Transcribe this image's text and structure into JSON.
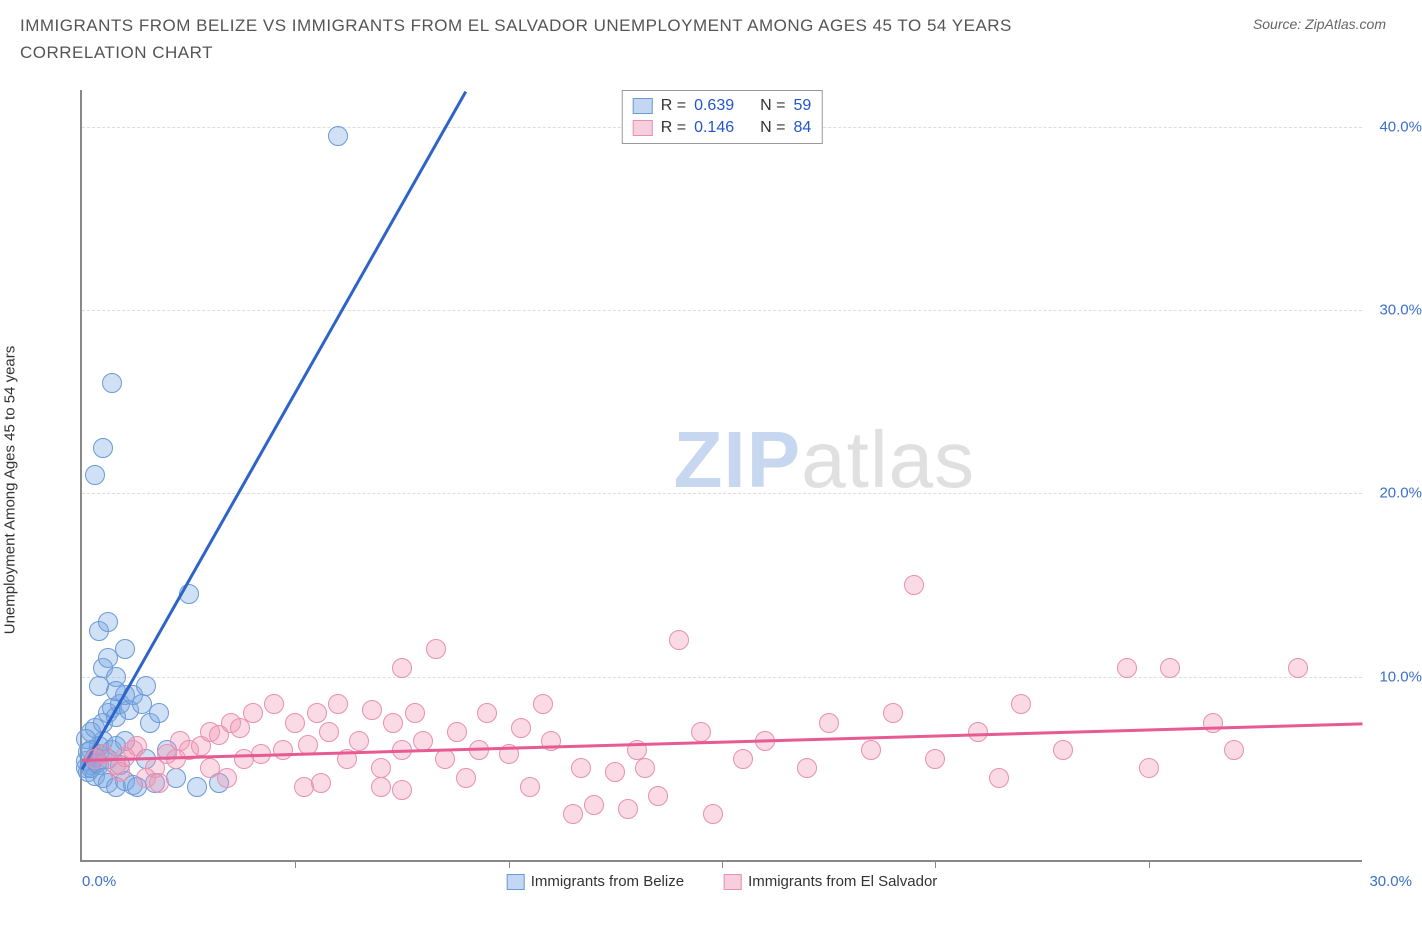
{
  "title": "IMMIGRANTS FROM BELIZE VS IMMIGRANTS FROM EL SALVADOR UNEMPLOYMENT AMONG AGES 45 TO 54 YEARS CORRELATION CHART",
  "source": "Source: ZipAtlas.com",
  "ylabel": "Unemployment Among Ages 45 to 54 years",
  "watermark_zip": "ZIP",
  "watermark_atlas": "atlas",
  "chart": {
    "type": "scatter",
    "background_color": "#ffffff",
    "grid_color": "#dddddd",
    "axis_color": "#888888",
    "tick_label_color": "#3b6fc9",
    "xlim": [
      0,
      30
    ],
    "ylim": [
      0,
      42
    ],
    "x_ticks": [
      0,
      5,
      10,
      15,
      20,
      25,
      30
    ],
    "x_tick_labels_shown": {
      "0": "0.0%",
      "30": "30.0%"
    },
    "y_ticks": [
      10,
      20,
      30,
      40
    ],
    "y_tick_labels": {
      "10": "10.0%",
      "20": "20.0%",
      "30": "30.0%",
      "40": "40.0%"
    },
    "point_radius": 9,
    "point_stroke_width": 1.5,
    "series": [
      {
        "name": "Immigrants from Belize",
        "fill_color": "rgba(120,165,225,0.35)",
        "stroke_color": "#6a9ad8",
        "legend_fill": "#c3d7f2",
        "legend_stroke": "#6a9ad8",
        "R": "0.639",
        "N": "59",
        "trend": {
          "x1": 0,
          "y1": 5.0,
          "x2": 9.0,
          "y2": 42.0,
          "color": "#2e63c8",
          "width": 3
        },
        "points": [
          [
            0.1,
            5.0
          ],
          [
            0.2,
            5.2
          ],
          [
            0.1,
            5.4
          ],
          [
            0.3,
            5.6
          ],
          [
            0.2,
            6.0
          ],
          [
            0.4,
            5.8
          ],
          [
            0.15,
            4.8
          ],
          [
            0.3,
            4.6
          ],
          [
            0.4,
            6.2
          ],
          [
            0.5,
            6.5
          ],
          [
            0.2,
            7.0
          ],
          [
            0.3,
            7.2
          ],
          [
            0.1,
            6.6
          ],
          [
            0.4,
            5.2
          ],
          [
            0.6,
            5.5
          ],
          [
            0.7,
            6.0
          ],
          [
            0.8,
            6.2
          ],
          [
            0.2,
            5.0
          ],
          [
            0.35,
            5.3
          ],
          [
            0.15,
            5.9
          ],
          [
            0.5,
            7.5
          ],
          [
            0.6,
            8.0
          ],
          [
            0.7,
            8.3
          ],
          [
            0.8,
            7.8
          ],
          [
            0.9,
            8.5
          ],
          [
            1.0,
            9.0
          ],
          [
            1.1,
            8.2
          ],
          [
            0.5,
            4.5
          ],
          [
            0.6,
            4.2
          ],
          [
            0.8,
            4.0
          ],
          [
            1.0,
            4.3
          ],
          [
            1.2,
            4.1
          ],
          [
            0.9,
            5.2
          ],
          [
            0.4,
            9.5
          ],
          [
            0.5,
            10.5
          ],
          [
            0.6,
            11.0
          ],
          [
            0.8,
            10.0
          ],
          [
            1.0,
            11.5
          ],
          [
            1.2,
            9.0
          ],
          [
            1.4,
            8.5
          ],
          [
            1.6,
            7.5
          ],
          [
            1.8,
            8.0
          ],
          [
            2.0,
            6.0
          ],
          [
            1.5,
            5.5
          ],
          [
            0.4,
            12.5
          ],
          [
            0.6,
            13.0
          ],
          [
            0.3,
            21.0
          ],
          [
            0.5,
            22.5
          ],
          [
            0.7,
            26.0
          ],
          [
            2.5,
            14.5
          ],
          [
            1.3,
            4.0
          ],
          [
            1.7,
            4.2
          ],
          [
            2.2,
            4.5
          ],
          [
            2.7,
            4.0
          ],
          [
            3.2,
            4.2
          ],
          [
            1.5,
            9.5
          ],
          [
            1.0,
            6.5
          ],
          [
            0.8,
            9.2
          ],
          [
            6.0,
            39.5
          ]
        ]
      },
      {
        "name": "Immigrants from El Salvador",
        "fill_color": "rgba(240,150,180,0.35)",
        "stroke_color": "#e990b0",
        "legend_fill": "#f7cedd",
        "legend_stroke": "#e990b0",
        "R": "0.146",
        "N": "84",
        "trend": {
          "x1": 0,
          "y1": 5.5,
          "x2": 30,
          "y2": 7.5,
          "color": "#e75a92",
          "width": 3
        },
        "points": [
          [
            0.3,
            5.5
          ],
          [
            0.5,
            5.8
          ],
          [
            0.8,
            5.2
          ],
          [
            1.0,
            5.6
          ],
          [
            1.2,
            6.0
          ],
          [
            1.5,
            4.5
          ],
          [
            1.7,
            5.0
          ],
          [
            2.0,
            5.8
          ],
          [
            1.3,
            6.2
          ],
          [
            0.9,
            4.8
          ],
          [
            1.8,
            4.2
          ],
          [
            2.2,
            5.5
          ],
          [
            2.5,
            6.0
          ],
          [
            2.3,
            6.5
          ],
          [
            2.8,
            6.2
          ],
          [
            3.0,
            7.0
          ],
          [
            3.2,
            6.8
          ],
          [
            3.5,
            7.5
          ],
          [
            3.7,
            7.2
          ],
          [
            4.0,
            8.0
          ],
          [
            3.0,
            5.0
          ],
          [
            3.4,
            4.5
          ],
          [
            3.8,
            5.5
          ],
          [
            4.2,
            5.8
          ],
          [
            4.5,
            8.5
          ],
          [
            4.7,
            6.0
          ],
          [
            5.0,
            7.5
          ],
          [
            5.3,
            6.3
          ],
          [
            5.5,
            8.0
          ],
          [
            5.8,
            7.0
          ],
          [
            6.0,
            8.5
          ],
          [
            5.2,
            4.0
          ],
          [
            5.6,
            4.2
          ],
          [
            6.2,
            5.5
          ],
          [
            6.5,
            6.5
          ],
          [
            6.8,
            8.2
          ],
          [
            7.0,
            5.0
          ],
          [
            7.3,
            7.5
          ],
          [
            7.5,
            6.0
          ],
          [
            7.8,
            8.0
          ],
          [
            7.0,
            4.0
          ],
          [
            7.5,
            3.8
          ],
          [
            8.0,
            6.5
          ],
          [
            8.3,
            11.5
          ],
          [
            7.5,
            10.5
          ],
          [
            8.5,
            5.5
          ],
          [
            8.8,
            7.0
          ],
          [
            9.0,
            4.5
          ],
          [
            9.3,
            6.0
          ],
          [
            9.5,
            8.0
          ],
          [
            10.0,
            5.8
          ],
          [
            10.3,
            7.2
          ],
          [
            10.5,
            4.0
          ],
          [
            10.8,
            8.5
          ],
          [
            11.0,
            6.5
          ],
          [
            11.5,
            2.5
          ],
          [
            11.7,
            5.0
          ],
          [
            12.5,
            4.8
          ],
          [
            12.0,
            3.0
          ],
          [
            12.8,
            2.8
          ],
          [
            13.0,
            6.0
          ],
          [
            13.5,
            3.5
          ],
          [
            14.0,
            12.0
          ],
          [
            13.2,
            5.0
          ],
          [
            14.5,
            7.0
          ],
          [
            14.8,
            2.5
          ],
          [
            15.5,
            5.5
          ],
          [
            16.0,
            6.5
          ],
          [
            17.0,
            5.0
          ],
          [
            17.5,
            7.5
          ],
          [
            18.5,
            6.0
          ],
          [
            19.0,
            8.0
          ],
          [
            20.0,
            5.5
          ],
          [
            19.5,
            15.0
          ],
          [
            21.0,
            7.0
          ],
          [
            21.5,
            4.5
          ],
          [
            22.0,
            8.5
          ],
          [
            23.0,
            6.0
          ],
          [
            24.5,
            10.5
          ],
          [
            25.0,
            5.0
          ],
          [
            25.5,
            10.5
          ],
          [
            26.5,
            7.5
          ],
          [
            27.0,
            6.0
          ],
          [
            28.5,
            10.5
          ]
        ]
      }
    ]
  },
  "legend_top_labels": {
    "R": "R =",
    "N": "N ="
  },
  "legend_bottom": [
    {
      "label": "Immigrants from Belize"
    },
    {
      "label": "Immigrants from El Salvador"
    }
  ]
}
